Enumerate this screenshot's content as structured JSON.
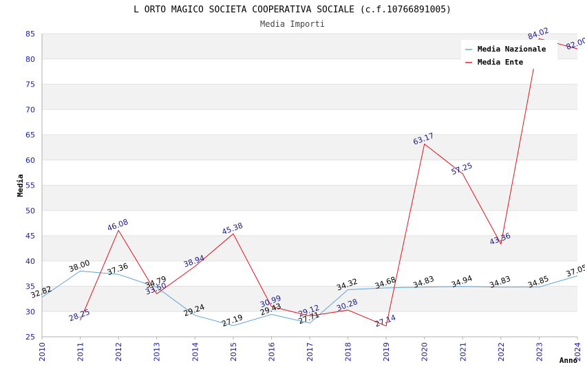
{
  "title": "L ORTO MAGICO SOCIETA COOPERATIVA SOCIALE (c.f.10766891005)",
  "subtitle": "Media Importi",
  "chart_data": {
    "type": "line",
    "title": "L ORTO MAGICO SOCIETA COOPERATIVA SOCIALE (c.f.10766891005)",
    "subtitle": "Media Importi",
    "xlabel": "Anno",
    "ylabel": "Media",
    "ylim": [
      25,
      85
    ],
    "yticks": [
      25,
      30,
      35,
      40,
      45,
      50,
      55,
      60,
      65,
      70,
      75,
      80,
      85
    ],
    "x": [
      2010,
      2011,
      2012,
      2013,
      2014,
      2015,
      2016,
      2017,
      2018,
      2019,
      2020,
      2021,
      2022,
      2023,
      2024
    ],
    "grid": true,
    "legend_position": "top-right",
    "series": [
      {
        "name": "Media Nazionale",
        "color": "#5ba3dc",
        "values": [
          32.82,
          38.0,
          37.36,
          34.79,
          29.24,
          27.19,
          29.43,
          27.71,
          34.32,
          34.68,
          34.83,
          34.94,
          34.83,
          34.85,
          37.05
        ],
        "labels": [
          "32.82",
          "38.00",
          "37.36",
          "34.79",
          "29.24",
          "27.19",
          "29.43",
          "27.71",
          "34.32",
          "34.68",
          "34.83",
          "34.94",
          "34.83",
          "34.85",
          "37.05"
        ]
      },
      {
        "name": "Media Ente",
        "color": "#e8101a",
        "values": [
          null,
          28.25,
          46.08,
          33.5,
          38.94,
          45.38,
          30.99,
          29.12,
          30.28,
          27.14,
          63.17,
          57.25,
          43.36,
          84.02,
          82.0
        ],
        "labels": [
          null,
          "28.25",
          "46.08",
          "33.50",
          "38.94",
          "45.38",
          "30.99",
          "29.12",
          "30.28",
          "27.14",
          "63.17",
          "57.25",
          "43.36",
          "84.02",
          "82.00"
        ]
      }
    ]
  }
}
